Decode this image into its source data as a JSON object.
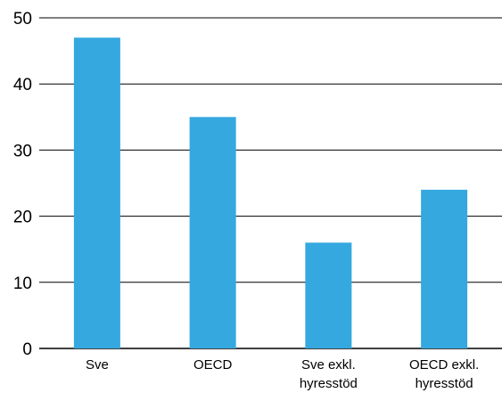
{
  "chart_data": {
    "type": "bar",
    "categories": [
      [
        "Sve"
      ],
      [
        "OECD"
      ],
      [
        "Sve exkl.",
        "hyresstöd"
      ],
      [
        "OECD exkl.",
        "hyresstöd"
      ]
    ],
    "values": [
      47,
      35,
      16,
      24
    ],
    "ylim": [
      0,
      50
    ],
    "yticks": [
      "0",
      "10",
      "20",
      "30",
      "40",
      "50"
    ],
    "grid": true,
    "title": "",
    "xlabel": "",
    "ylabel": "",
    "colors": {
      "bar": "#35a8e0",
      "grid": "#000000",
      "axis": "#000000"
    }
  }
}
